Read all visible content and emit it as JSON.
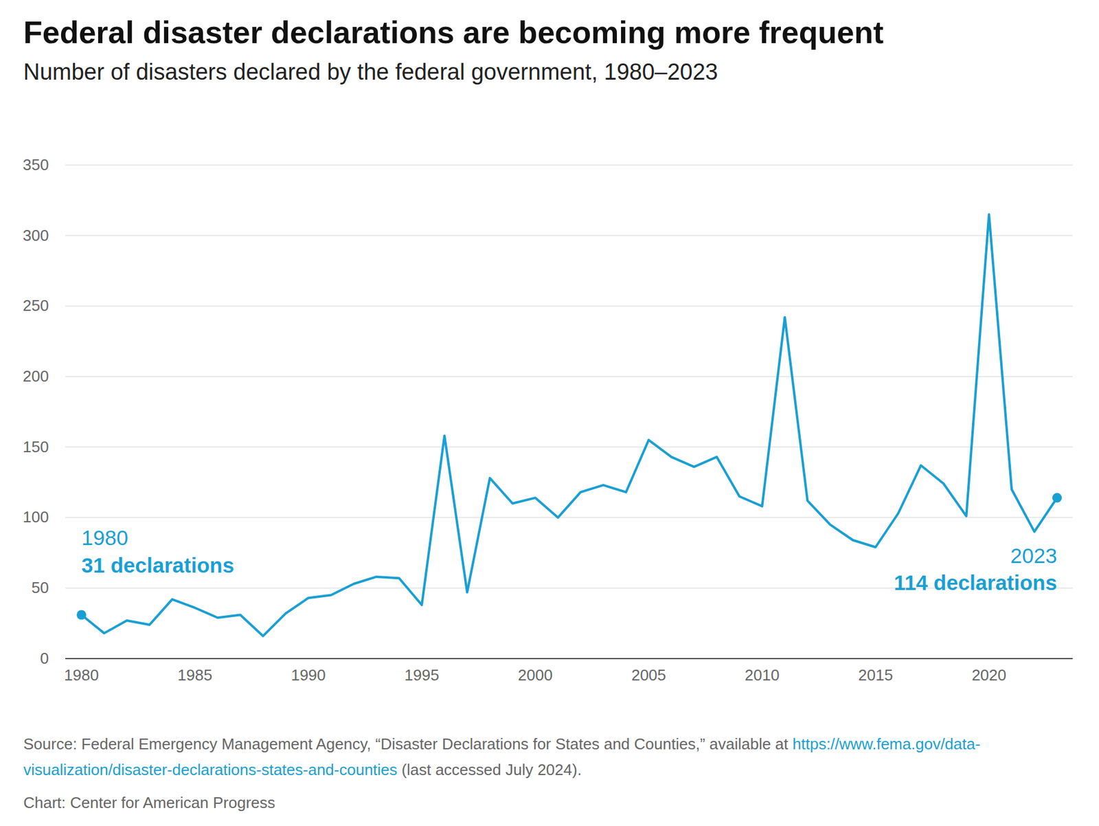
{
  "chart_data": {
    "type": "line",
    "title": "Federal disaster declarations are becoming more frequent",
    "subtitle": "Number of disasters declared by the federal government, 1980–2023",
    "x": [
      1980,
      1981,
      1982,
      1983,
      1984,
      1985,
      1986,
      1987,
      1988,
      1989,
      1990,
      1991,
      1992,
      1993,
      1994,
      1995,
      1996,
      1997,
      1998,
      1999,
      2000,
      2001,
      2002,
      2003,
      2004,
      2005,
      2006,
      2007,
      2008,
      2009,
      2010,
      2011,
      2012,
      2013,
      2014,
      2015,
      2016,
      2017,
      2018,
      2019,
      2020,
      2021,
      2022,
      2023
    ],
    "values": [
      31,
      18,
      27,
      24,
      42,
      36,
      29,
      31,
      16,
      32,
      43,
      45,
      53,
      58,
      57,
      38,
      158,
      47,
      128,
      110,
      114,
      100,
      118,
      123,
      118,
      155,
      143,
      136,
      143,
      115,
      108,
      242,
      112,
      95,
      84,
      79,
      103,
      137,
      124,
      101,
      315,
      120,
      90,
      114
    ],
    "color": "#1a9fd3",
    "xlim": [
      1979.3,
      2023.7
    ],
    "xticks": [
      1980,
      1985,
      1990,
      1995,
      2000,
      2005,
      2010,
      2015,
      2020
    ],
    "ylim": [
      0,
      350
    ],
    "yticks": [
      0,
      50,
      100,
      150,
      200,
      250,
      300,
      350
    ],
    "grid": true,
    "annotations": [
      {
        "x": 1980,
        "lines": [
          "1980",
          "31 declarations"
        ]
      },
      {
        "x": 2023,
        "lines": [
          "2023",
          "114 declarations"
        ]
      }
    ],
    "source_prefix": "Source: Federal Emergency Management Agency, “Disaster Declarations for States and Counties,” available at",
    "source_url": "https://www.fema.gov/data-visualization/disaster-declarations-states-and-counties",
    "source_suffix": "(last accessed July 2024).",
    "credit": "Chart: Center for American Progress"
  }
}
